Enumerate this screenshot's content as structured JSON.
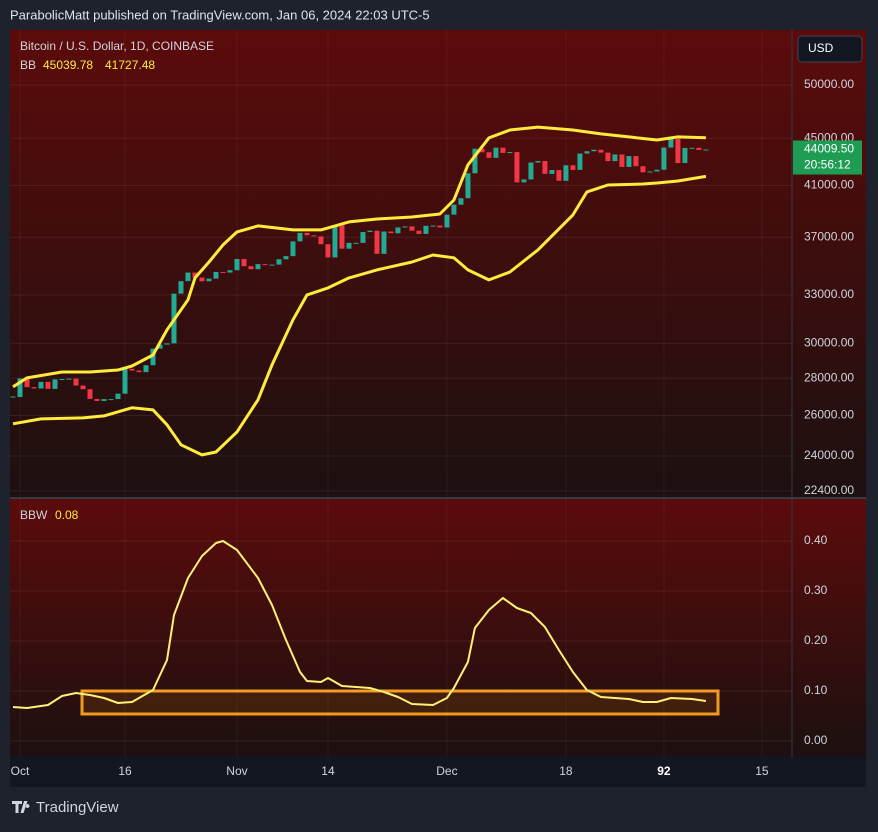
{
  "header": {
    "byline": "ParabolicMatt published on TradingView.com, Jan 06, 2024 22:03 UTC-5"
  },
  "currency": "USD",
  "footer": {
    "brand": "TradingView"
  },
  "chart_data": [
    {
      "type": "candlestick",
      "title": "Bitcoin / U.S. Dollar, 1D, COINBASE",
      "indicator": "BB",
      "log_scale": true,
      "grid": true,
      "up_color": "#22ab94",
      "down_color": "#f23645",
      "band_color": "#ffeb3b",
      "xlim": [
        -1.43,
        110.3
      ],
      "ylim": [
        22130,
        55750
      ],
      "yticks": [
        {
          "value": 22400,
          "label": "22400.00"
        },
        {
          "value": 24000,
          "label": "24000.00"
        },
        {
          "value": 26000,
          "label": "26000.00"
        },
        {
          "value": 28000,
          "label": "28000.00"
        },
        {
          "value": 30000,
          "label": "30000.00"
        },
        {
          "value": 33000,
          "label": "33000.00"
        },
        {
          "value": 37000,
          "label": "37000.00"
        },
        {
          "value": 41000,
          "label": "41000.00"
        },
        {
          "value": 45000,
          "label": "45000.00"
        },
        {
          "value": 50000,
          "label": "50000.00"
        }
      ],
      "x": [
        -1,
        0,
        1,
        2,
        3,
        4,
        5,
        6,
        7,
        8,
        9,
        10,
        11,
        12,
        13,
        14,
        15,
        16,
        17,
        18,
        19,
        20,
        21,
        22,
        23,
        24,
        25,
        26,
        27,
        28,
        29,
        30,
        31,
        32,
        33,
        34,
        35,
        36,
        37,
        38,
        39,
        40,
        41,
        42,
        43,
        44,
        45,
        46,
        47,
        48,
        49,
        50,
        51,
        52,
        53,
        54,
        55,
        56,
        57,
        58,
        59,
        60,
        61,
        62,
        63,
        64,
        65,
        66,
        67,
        68,
        69,
        70,
        71,
        72,
        73,
        74,
        75,
        76,
        77,
        78,
        79,
        80,
        81,
        82,
        83,
        84,
        85,
        86,
        87,
        88,
        89,
        90,
        91,
        92,
        93,
        94,
        95,
        96,
        97,
        98
      ],
      "close": [
        26970,
        27980,
        27500,
        27430,
        27790,
        27410,
        27930,
        27950,
        27970,
        27590,
        27390,
        26870,
        26760,
        26860,
        26860,
        27150,
        28520,
        28420,
        28330,
        28720,
        29680,
        29920,
        29990,
        33090,
        33920,
        34500,
        34160,
        33910,
        34090,
        34540,
        34500,
        34660,
        35440,
        34940,
        34730,
        35080,
        35040,
        35050,
        35420,
        35640,
        36700,
        37320,
        37140,
        37060,
        36490,
        35550,
        37880,
        36170,
        36590,
        36590,
        37380,
        37480,
        35800,
        37420,
        37290,
        37720,
        37800,
        37480,
        37240,
        37840,
        37860,
        37720,
        38690,
        39460,
        39970,
        41990,
        44080,
        43770,
        43290,
        44170,
        43720,
        43790,
        41240,
        41480,
        42890,
        43020,
        41940,
        42260,
        41370,
        42660,
        42270,
        43660,
        43860,
        43990,
        43740,
        43010,
        43580,
        42520,
        43440,
        42580,
        42070,
        42140,
        42280,
        44180,
        44950,
        42850,
        44150,
        44160,
        43970,
        44009.5
      ],
      "last_price": {
        "value": 44009.5,
        "label": "44009.50"
      },
      "countdown": "20:56:12",
      "upper": {
        "x": [
          -1,
          1,
          6,
          10,
          14,
          16,
          19,
          21,
          24,
          25,
          27,
          29,
          31,
          34,
          39,
          43,
          47,
          51,
          56,
          60,
          62,
          64,
          67,
          70,
          74,
          79,
          83,
          87,
          91,
          94,
          98
        ],
        "values": [
          27520,
          28010,
          28340,
          28340,
          28450,
          28680,
          29310,
          30800,
          32690,
          34140,
          35230,
          36440,
          37390,
          37840,
          37540,
          37540,
          38140,
          38360,
          38510,
          38740,
          39830,
          42690,
          45030,
          45740,
          46010,
          45740,
          45390,
          45120,
          44850,
          45120,
          45039.78
        ]
      },
      "lower": {
        "x": [
          -1,
          3,
          9,
          12,
          16,
          19,
          21,
          23,
          26,
          28,
          31,
          34,
          36,
          39,
          41,
          44,
          47,
          51,
          56,
          59,
          62,
          64,
          67,
          70,
          74,
          79,
          81,
          84,
          89,
          91,
          94,
          98
        ],
        "values": [
          25580,
          25830,
          25880,
          25980,
          26400,
          26290,
          25530,
          24540,
          24050,
          24190,
          25170,
          26820,
          28740,
          31420,
          33010,
          33470,
          34140,
          34680,
          35230,
          35720,
          35520,
          34680,
          34000,
          34540,
          36080,
          38670,
          40470,
          41030,
          41110,
          41190,
          41350,
          41727.48
        ]
      }
    },
    {
      "type": "line",
      "indicator": "BBW",
      "color": "#fff176",
      "grid": true,
      "xlim": [
        -1.43,
        110.3
      ],
      "ylim": [
        -0.032,
        0.484
      ],
      "yticks": [
        {
          "value": 0,
          "label": "0.00"
        },
        {
          "value": 0.1,
          "label": "0.10"
        },
        {
          "value": 0.2,
          "label": "0.20"
        },
        {
          "value": 0.3,
          "label": "0.30"
        },
        {
          "value": 0.4,
          "label": "0.40"
        }
      ],
      "xticks": [
        {
          "value": 0,
          "label": "Oct"
        },
        {
          "value": 15,
          "label": "16"
        },
        {
          "value": 31,
          "label": "Nov"
        },
        {
          "value": 44,
          "label": "14"
        },
        {
          "value": 61,
          "label": "Dec"
        },
        {
          "value": 78,
          "label": "18"
        },
        92,
        {
          "value": 106,
          "label": "15"
        }
      ],
      "x": [
        -1,
        1,
        4,
        6,
        8,
        10,
        12,
        14,
        16,
        19,
        21,
        22,
        24,
        26,
        28,
        29,
        31,
        34,
        36,
        38,
        40,
        41,
        43,
        44,
        46,
        50,
        52,
        54,
        56,
        59,
        61,
        62,
        64,
        65,
        67,
        69,
        71,
        73,
        75,
        77,
        79,
        81,
        83,
        85,
        87,
        89,
        91,
        93,
        96,
        98
      ],
      "values": [
        0.068,
        0.066,
        0.072,
        0.09,
        0.096,
        0.092,
        0.086,
        0.076,
        0.078,
        0.102,
        0.162,
        0.252,
        0.326,
        0.37,
        0.396,
        0.4,
        0.382,
        0.326,
        0.272,
        0.202,
        0.138,
        0.12,
        0.118,
        0.126,
        0.11,
        0.106,
        0.098,
        0.088,
        0.074,
        0.072,
        0.086,
        0.106,
        0.158,
        0.226,
        0.262,
        0.286,
        0.266,
        0.256,
        0.228,
        0.182,
        0.138,
        0.102,
        0.088,
        0.086,
        0.084,
        0.078,
        0.078,
        0.086,
        0.084,
        0.08
      ]
    }
  ]
}
